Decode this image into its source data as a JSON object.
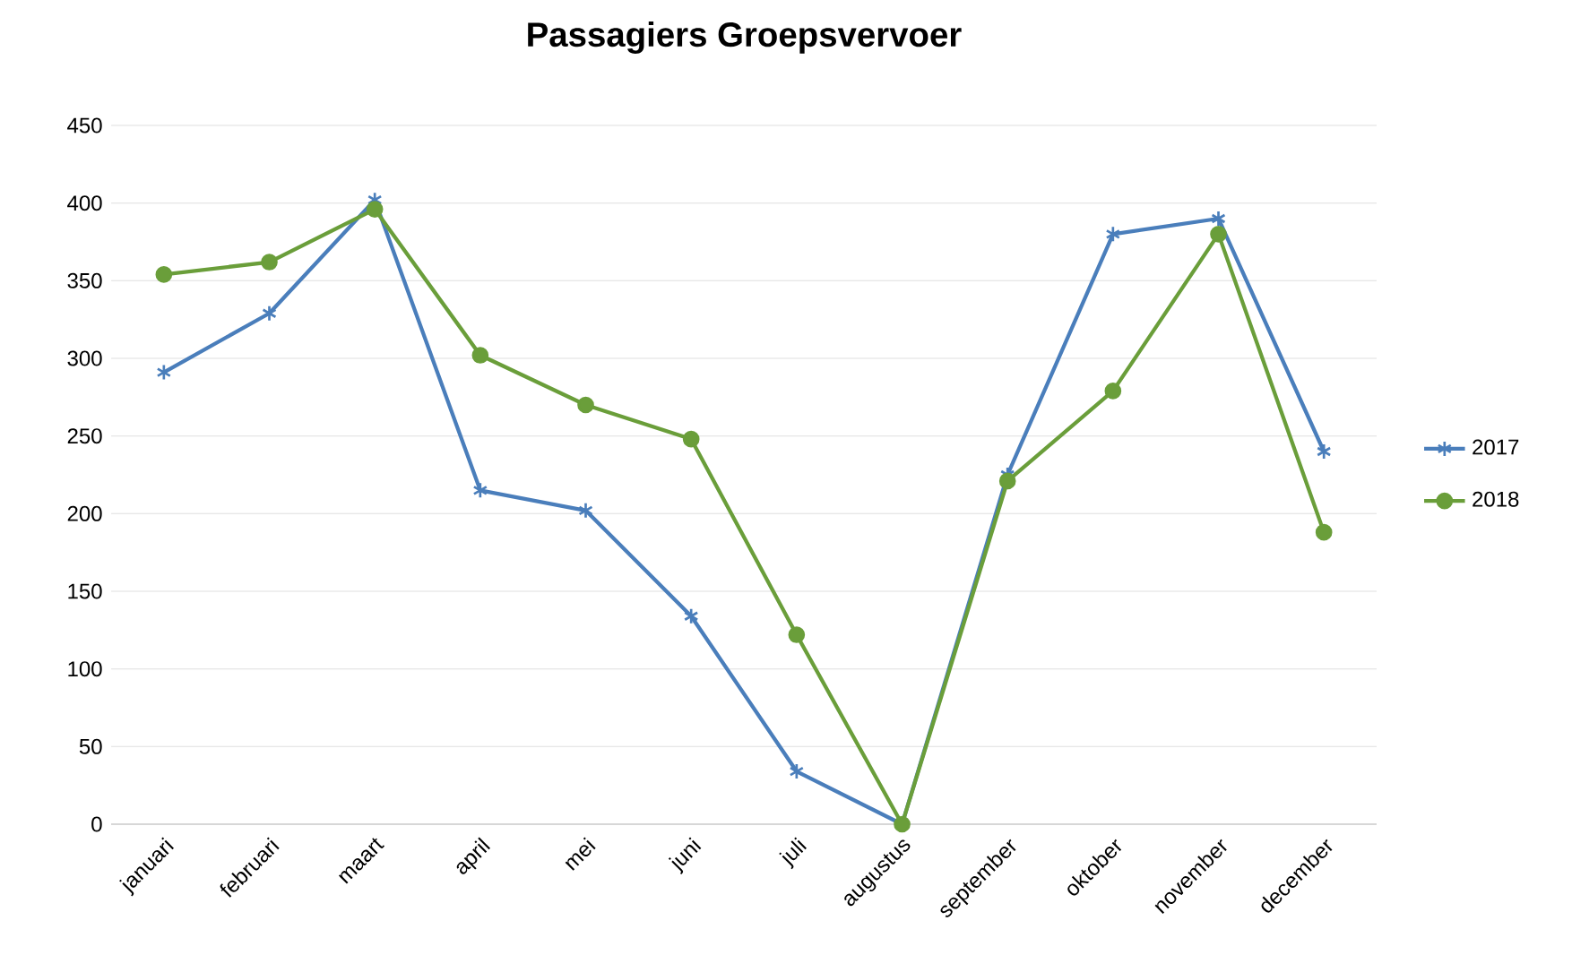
{
  "chart_data": {
    "type": "line",
    "title": "Passagiers Groepsvervoer",
    "categories": [
      "januari",
      "februari",
      "maart",
      "april",
      "mei",
      "juni",
      "juli",
      "augustus",
      "september",
      "oktober",
      "november",
      "december"
    ],
    "series": [
      {
        "name": "2017",
        "color": "#4a7ebb",
        "marker": "cross",
        "values": [
          291,
          329,
          402,
          215,
          202,
          134,
          34,
          0,
          225,
          380,
          390,
          240
        ]
      },
      {
        "name": "2018",
        "color": "#6a9e3a",
        "marker": "circle",
        "values": [
          354,
          362,
          396,
          302,
          270,
          248,
          122,
          0,
          221,
          279,
          380,
          188
        ]
      }
    ],
    "ylim": [
      0,
      450
    ],
    "yticks": [
      0,
      50,
      100,
      150,
      200,
      250,
      300,
      350,
      400,
      450
    ],
    "grid": "y",
    "legend": "right",
    "line_style": "solid"
  }
}
